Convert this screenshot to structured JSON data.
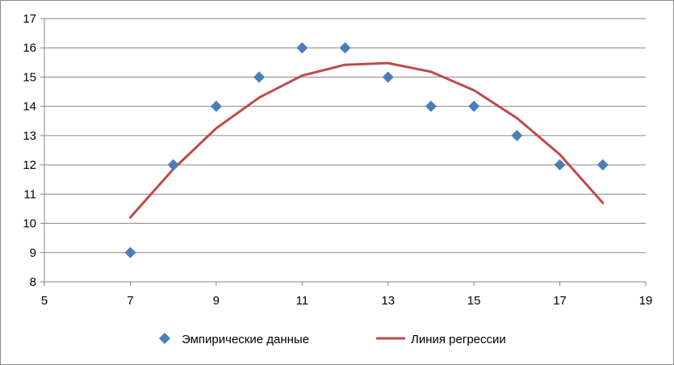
{
  "chart_data": {
    "type": "scatter",
    "title": "",
    "xlabel": "",
    "ylabel": "",
    "xlim": [
      5,
      19
    ],
    "ylim": [
      8,
      17
    ],
    "x_ticks": [
      5,
      7,
      9,
      11,
      13,
      15,
      17,
      19
    ],
    "y_ticks": [
      8,
      9,
      10,
      11,
      12,
      13,
      14,
      15,
      16,
      17
    ],
    "grid": "horizontal",
    "legend_position": "bottom",
    "series": [
      {
        "name": "Эмпирические данные",
        "kind": "scatter",
        "marker": "diamond",
        "color": "#4a7ebb",
        "x": [
          7,
          8,
          9,
          10,
          11,
          12,
          13,
          14,
          15,
          16,
          17,
          18
        ],
        "y": [
          9,
          12,
          14,
          15,
          16,
          16,
          15,
          14,
          14,
          13,
          12,
          12
        ]
      },
      {
        "name": "Линия регрессии",
        "kind": "line",
        "color": "#be4b48",
        "x": [
          7,
          8,
          9,
          10,
          11,
          12,
          13,
          14,
          15,
          16,
          17,
          18
        ],
        "y": [
          10.2,
          11.85,
          13.25,
          14.3,
          15.05,
          15.42,
          15.48,
          15.18,
          14.55,
          13.6,
          12.35,
          10.7
        ]
      }
    ]
  }
}
